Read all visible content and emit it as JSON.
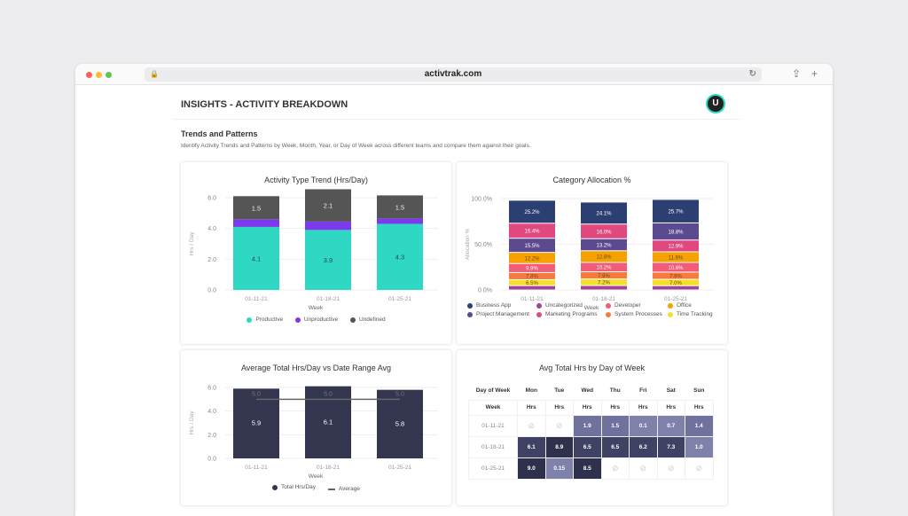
{
  "browser": {
    "url": "activtrak.com"
  },
  "header": {
    "title": "INSIGHTS - ACTIVITY BREAKDOWN",
    "avatar": "U"
  },
  "section": {
    "title": "Trends and Patterns",
    "description": "Identify Activity Trends and Patterns by Week, Month, Year, or Day of Week across different teams and compare them against their goals."
  },
  "chart_data": [
    {
      "type": "bar",
      "stacked": true,
      "title": "Activity Type Trend (Hrs/Day)",
      "xlabel": "Week",
      "ylabel": "Hrs / Day",
      "ylim": [
        0,
        6
      ],
      "yticks": [
        "0.0",
        "2.0",
        "4.0",
        "6.0"
      ],
      "categories": [
        "01-11-21",
        "01-18-21",
        "01-25-21"
      ],
      "legend_position": "bottom",
      "series": [
        {
          "name": "Productive",
          "color": "#2ed8c3",
          "values": [
            4.1,
            3.9,
            4.3
          ],
          "labels": [
            "4.1",
            "3.9",
            "4.3"
          ]
        },
        {
          "name": "Unproductive",
          "color": "#7c3aed",
          "values": [
            0.5,
            0.55,
            0.35
          ],
          "labels": [
            "",
            "",
            ""
          ]
        },
        {
          "name": "Undefined",
          "color": "#555555",
          "values": [
            1.5,
            2.1,
            1.5
          ],
          "labels": [
            "1.5",
            "2.1",
            "1.5"
          ]
        }
      ]
    },
    {
      "type": "bar",
      "stacked": true,
      "title": "Category Allocation %",
      "xlabel": "Week",
      "ylabel": "Allocation %",
      "ylim": [
        0,
        100
      ],
      "yticks": [
        "0.0%",
        "50.0%",
        "100.0%"
      ],
      "categories": [
        "01-11-21",
        "01-18-21",
        "01-25-21"
      ],
      "legend_position": "bottom",
      "legend": [
        {
          "name": "Business App",
          "color": "#2b3f73"
        },
        {
          "name": "Uncategorized",
          "color": "#a0449a"
        },
        {
          "name": "Developer",
          "color": "#f25c78"
        },
        {
          "name": "Office",
          "color": "#f5a100"
        },
        {
          "name": "Project Management",
          "color": "#5b4a8f"
        },
        {
          "name": "Marketing Programs",
          "color": "#e0487f"
        },
        {
          "name": "System Processes",
          "color": "#f77b3c"
        },
        {
          "name": "Time Tracking",
          "color": "#f2e02a"
        }
      ],
      "stacks": [
        [
          {
            "c": "Uncategorized",
            "v": 4.7,
            "l": ""
          },
          {
            "c": "Time Tracking",
            "v": 6.5,
            "l": "6.5%"
          },
          {
            "c": "System Processes",
            "v": 7.8,
            "l": "7.8%"
          },
          {
            "c": "Developer",
            "v": 9.9,
            "l": "9.9%"
          },
          {
            "c": "Office",
            "v": 12.2,
            "l": "12.2%"
          },
          {
            "c": "Project Management",
            "v": 15.5,
            "l": "15.5%"
          },
          {
            "c": "Marketing Programs",
            "v": 16.4,
            "l": "16.4%"
          },
          {
            "c": "Business App",
            "v": 25.2,
            "l": "25.2%"
          }
        ],
        [
          {
            "c": "Uncategorized",
            "v": 4.8,
            "l": ""
          },
          {
            "c": "Time Tracking",
            "v": 7.2,
            "l": "7.2%"
          },
          {
            "c": "System Processes",
            "v": 7.9,
            "l": "7.9%"
          },
          {
            "c": "Developer",
            "v": 10.2,
            "l": "10.2%"
          },
          {
            "c": "Office",
            "v": 12.8,
            "l": "12.8%"
          },
          {
            "c": "Project Management",
            "v": 13.2,
            "l": "13.2%"
          },
          {
            "c": "Marketing Programs",
            "v": 16.0,
            "l": "16.0%"
          },
          {
            "c": "Business App",
            "v": 24.1,
            "l": "24.1%"
          }
        ],
        [
          {
            "c": "Uncategorized",
            "v": 4.6,
            "l": ""
          },
          {
            "c": "Time Tracking",
            "v": 7.0,
            "l": "7.0%"
          },
          {
            "c": "System Processes",
            "v": 7.9,
            "l": "7.9%"
          },
          {
            "c": "Developer",
            "v": 10.6,
            "l": "10.6%"
          },
          {
            "c": "Office",
            "v": 11.6,
            "l": "11.6%"
          },
          {
            "c": "Marketing Programs",
            "v": 12.9,
            "l": "12.9%"
          },
          {
            "c": "Project Management",
            "v": 18.8,
            "l": "18.8%"
          },
          {
            "c": "Business App",
            "v": 25.7,
            "l": "25.7%"
          }
        ]
      ]
    },
    {
      "type": "bar",
      "title": "Average Total Hrs/Day vs Date Range Avg",
      "xlabel": "Week",
      "ylabel": "Hrs / Day",
      "ylim": [
        0,
        6
      ],
      "yticks": [
        "0.0",
        "2.0",
        "4.0",
        "6.0"
      ],
      "categories": [
        "01-11-21",
        "01-18-21",
        "01-25-21"
      ],
      "legend_position": "bottom",
      "series": [
        {
          "name": "Total Hrs/Day",
          "color": "#34364f",
          "values": [
            5.9,
            6.1,
            5.8
          ],
          "labels": [
            "5.9",
            "6.1",
            "5.8"
          ]
        },
        {
          "name": "Average",
          "type": "line",
          "color": "#666666",
          "values": [
            5.0,
            5.0,
            5.0
          ],
          "labels": [
            "5.0",
            "5.0",
            "5.0"
          ]
        }
      ]
    },
    {
      "type": "heatmap",
      "title": "Avg Total Hrs by Day of Week",
      "corner_label": "Day of Week",
      "row_header": "Week",
      "col_sub": "Hrs",
      "columns": [
        "Mon",
        "Tue",
        "Wed",
        "Thu",
        "Fri",
        "Sat",
        "Sun"
      ],
      "rows": [
        {
          "week": "01-11-21",
          "values": [
            null,
            null,
            1.9,
            1.5,
            0.1,
            0.7,
            1.4
          ],
          "labels": [
            "",
            "",
            "1.9",
            "1.5",
            "0.1",
            "0.7",
            "1.4"
          ]
        },
        {
          "week": "01-18-21",
          "values": [
            6.1,
            8.9,
            6.5,
            6.5,
            6.2,
            7.3,
            1.0
          ],
          "labels": [
            "6.1",
            "8.9",
            "6.5",
            "6.5",
            "6.2",
            "7.3",
            "1.0"
          ]
        },
        {
          "week": "01-25-21",
          "values": [
            9.0,
            0.15,
            8.5,
            null,
            null,
            null,
            null
          ],
          "labels": [
            "9.0",
            "0.15",
            "8.5",
            "",
            "",
            "",
            ""
          ]
        }
      ],
      "empty_icon": "no-data-icon"
    }
  ]
}
